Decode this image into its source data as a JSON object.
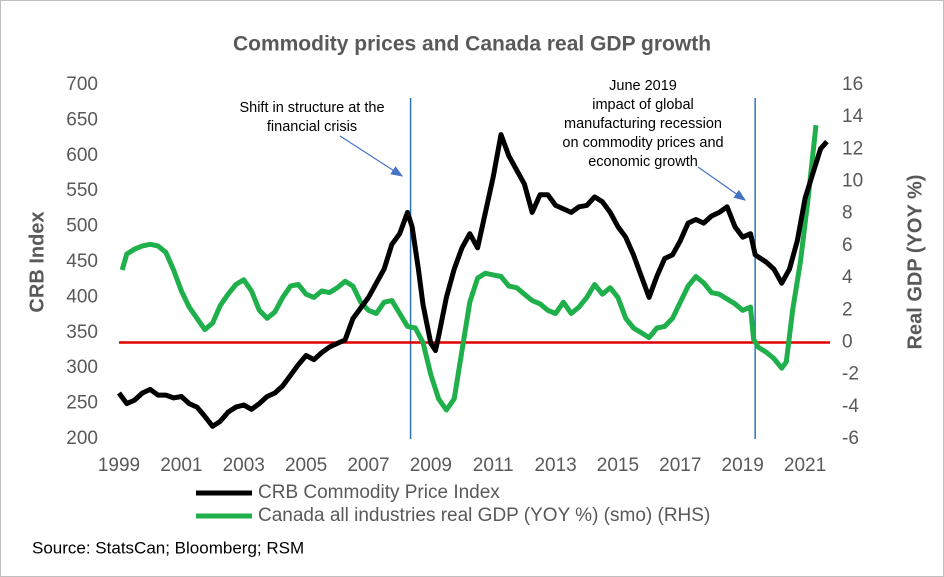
{
  "chart_data": {
    "type": "line",
    "title": "Commodity prices and Canada real GDP growth",
    "y_label": "CRB Index",
    "y2_label": "Real GDP (YOY %)",
    "source": "Source: StatsCan; Bloomberg; RSM",
    "xlim": [
      1999,
      2021.8
    ],
    "xticks": [
      1999,
      2001,
      2003,
      2005,
      2007,
      2009,
      2011,
      2013,
      2015,
      2017,
      2019,
      2021
    ],
    "ylim": [
      200,
      700
    ],
    "yticks": [
      200,
      250,
      300,
      350,
      400,
      450,
      500,
      550,
      600,
      650,
      700
    ],
    "y2lim": [
      -6,
      16
    ],
    "y2ticks": [
      -6,
      -4,
      -2,
      0,
      2,
      4,
      6,
      8,
      10,
      12,
      14,
      16
    ],
    "reference_line": {
      "axis": "y2",
      "value": 0,
      "color": "#e00000"
    },
    "vlines": {
      "x": [
        2008.35,
        2019.4
      ],
      "color": "#2e75b6"
    },
    "annotations": [
      {
        "lines": [
          "Shift in structure at the",
          "financial crisis"
        ]
      },
      {
        "lines": [
          "June 2019",
          "impact of global",
          "manufacturing recession",
          "on commodity prices and",
          "economic growth"
        ]
      }
    ],
    "series": [
      {
        "name": "CRB Commodity Price Index",
        "color": "#000000",
        "axis": "y",
        "x": [
          1999.0,
          1999.25,
          1999.5,
          1999.75,
          2000.0,
          2000.25,
          2000.5,
          2000.75,
          2001.0,
          2001.25,
          2001.5,
          2001.75,
          2002.0,
          2002.25,
          2002.5,
          2002.75,
          2003.0,
          2003.25,
          2003.5,
          2003.75,
          2004.0,
          2004.25,
          2004.5,
          2004.75,
          2005.0,
          2005.25,
          2005.5,
          2005.75,
          2006.0,
          2006.25,
          2006.5,
          2006.75,
          2007.0,
          2007.25,
          2007.5,
          2007.75,
          2008.0,
          2008.25,
          2008.4,
          2008.6,
          2008.75,
          2009.0,
          2009.15,
          2009.25,
          2009.5,
          2009.75,
          2010.0,
          2010.25,
          2010.5,
          2010.75,
          2011.0,
          2011.25,
          2011.5,
          2011.75,
          2012.0,
          2012.25,
          2012.5,
          2012.75,
          2013.0,
          2013.25,
          2013.5,
          2013.75,
          2014.0,
          2014.25,
          2014.5,
          2014.75,
          2015.0,
          2015.25,
          2015.5,
          2015.75,
          2016.0,
          2016.25,
          2016.5,
          2016.75,
          2017.0,
          2017.25,
          2017.5,
          2017.75,
          2018.0,
          2018.25,
          2018.5,
          2018.75,
          2019.0,
          2019.25,
          2019.4,
          2019.75,
          2020.0,
          2020.25,
          2020.5,
          2020.75,
          2021.0,
          2021.25,
          2021.5,
          2021.7
        ],
        "values": [
          265,
          250,
          255,
          265,
          270,
          262,
          262,
          258,
          260,
          250,
          245,
          232,
          218,
          225,
          238,
          245,
          248,
          242,
          250,
          260,
          265,
          275,
          290,
          305,
          318,
          312,
          322,
          330,
          335,
          340,
          370,
          385,
          400,
          420,
          440,
          475,
          490,
          520,
          500,
          440,
          390,
          335,
          325,
          345,
          400,
          440,
          470,
          490,
          470,
          520,
          570,
          630,
          600,
          580,
          560,
          520,
          545,
          545,
          530,
          525,
          520,
          528,
          530,
          542,
          535,
          520,
          500,
          485,
          460,
          430,
          400,
          430,
          455,
          460,
          480,
          505,
          510,
          505,
          515,
          520,
          528,
          500,
          485,
          490,
          460,
          450,
          440,
          420,
          440,
          480,
          540,
          575,
          610,
          620
        ]
      },
      {
        "name": "Canada all industries real GDP (YOY %) (smo) (RHS)",
        "color": "#1faf4b",
        "axis": "y2",
        "x": [
          1999.1,
          1999.25,
          1999.5,
          1999.75,
          2000.0,
          2000.25,
          2000.5,
          2000.75,
          2001.0,
          2001.25,
          2001.5,
          2001.75,
          2002.0,
          2002.25,
          2002.5,
          2002.75,
          2003.0,
          2003.25,
          2003.5,
          2003.75,
          2004.0,
          2004.25,
          2004.5,
          2004.75,
          2005.0,
          2005.25,
          2005.5,
          2005.75,
          2006.0,
          2006.25,
          2006.5,
          2006.75,
          2007.0,
          2007.25,
          2007.5,
          2007.75,
          2008.0,
          2008.25,
          2008.5,
          2008.75,
          2009.0,
          2009.25,
          2009.5,
          2009.75,
          2010.0,
          2010.25,
          2010.5,
          2010.75,
          2011.0,
          2011.25,
          2011.5,
          2011.75,
          2012.0,
          2012.25,
          2012.5,
          2012.75,
          2013.0,
          2013.25,
          2013.5,
          2013.75,
          2014.0,
          2014.25,
          2014.5,
          2014.75,
          2015.0,
          2015.25,
          2015.5,
          2015.75,
          2016.0,
          2016.25,
          2016.5,
          2016.75,
          2017.0,
          2017.25,
          2017.5,
          2017.75,
          2018.0,
          2018.25,
          2018.5,
          2018.75,
          2019.0,
          2019.25,
          2019.35,
          2019.5,
          2019.75,
          2020.0,
          2020.25,
          2020.4,
          2020.6,
          2020.85,
          2021.1,
          2021.35
        ],
        "values": [
          4.5,
          5.5,
          5.8,
          6.0,
          6.1,
          6.0,
          5.6,
          4.5,
          3.2,
          2.2,
          1.5,
          0.8,
          1.2,
          2.3,
          3.0,
          3.6,
          3.9,
          3.2,
          2.0,
          1.5,
          1.9,
          2.8,
          3.5,
          3.6,
          3.0,
          2.8,
          3.2,
          3.1,
          3.4,
          3.8,
          3.5,
          2.5,
          2.0,
          1.8,
          2.5,
          2.6,
          1.8,
          1.0,
          0.9,
          0.0,
          -2.0,
          -3.5,
          -4.2,
          -3.5,
          -0.5,
          2.5,
          4.0,
          4.3,
          4.2,
          4.1,
          3.5,
          3.4,
          3.0,
          2.6,
          2.4,
          2.0,
          1.8,
          2.5,
          1.8,
          2.2,
          2.8,
          3.6,
          3.0,
          3.4,
          2.8,
          1.5,
          0.9,
          0.6,
          0.3,
          0.9,
          1.0,
          1.5,
          2.5,
          3.5,
          4.1,
          3.7,
          3.1,
          3.0,
          2.7,
          2.4,
          2.0,
          2.2,
          0.2,
          -0.3,
          -0.6,
          -1.0,
          -1.6,
          -1.2,
          2.0,
          5.0,
          9.0,
          13.5
        ]
      }
    ]
  }
}
